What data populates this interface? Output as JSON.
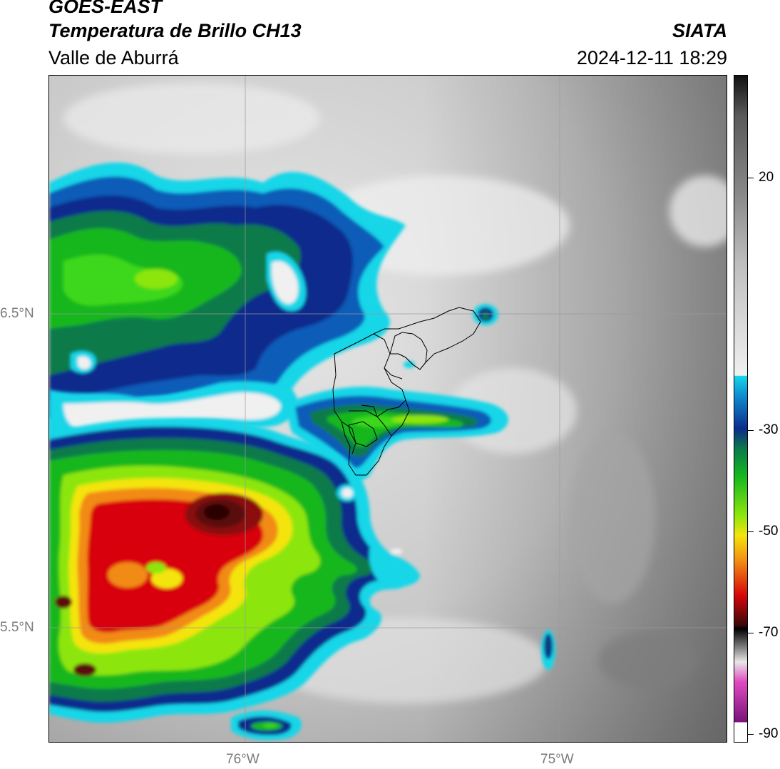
{
  "header": {
    "satellite": "GOES-EAST",
    "product": "Temperatura de Brillo CH13",
    "region": "Valle de Aburrá",
    "agency": "SIATA",
    "datetime": "2024-12-11 18:29"
  },
  "map": {
    "lat_labels": [
      "6.5°N",
      "5.5°N"
    ],
    "lon_labels": [
      "76°W",
      "75°W"
    ],
    "lat_range": [
      5.15,
      7.25
    ],
    "lon_range": [
      76.62,
      74.47
    ]
  },
  "colorbar": {
    "ticks": [
      "20",
      "-30",
      "-50",
      "-70",
      "-90"
    ],
    "range": [
      -92,
      40
    ],
    "colors": {
      "warm_white": "#f0f0f0",
      "cyan": "#14d6e8",
      "blue": "#0c2c8c",
      "green": "#13b71f",
      "lime": "#8ce60f",
      "yellow": "#f4e40b",
      "orange": "#f28a13",
      "red": "#d8060a",
      "dark_red": "#3a0808",
      "magenta": "#e04ac0",
      "purple": "#7a137a"
    }
  }
}
